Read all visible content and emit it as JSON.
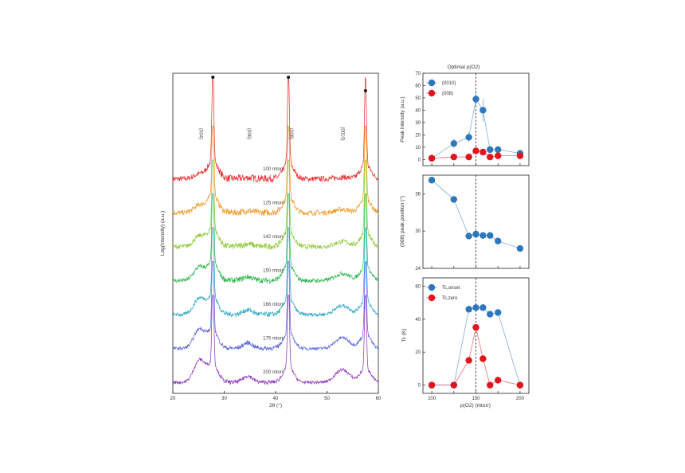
{
  "title": "Optimal p(O2)",
  "chart_data": [
    {
      "type": "line",
      "panel": "xrd-waterfall",
      "xlabel": "2θ (°)",
      "ylabel": "Log(Intensity) (a.u.)",
      "xlim": [
        20,
        60
      ],
      "x_ticks": [
        "20",
        "30",
        "40",
        "50",
        "60"
      ],
      "y_scale": "log, offset stacked",
      "peak_labels": [
        "(004)",
        "(006)",
        "(008)",
        "(0010)"
      ],
      "peak_positions": [
        25.2,
        34.6,
        43.0,
        53.0
      ],
      "reference_peaks": [
        27.8,
        42.5,
        57.5
      ],
      "series": [
        {
          "name": "100 mtorr",
          "color": "#e8262b"
        },
        {
          "name": "125 mtorr",
          "color": "#f0961e"
        },
        {
          "name": "142 mtorr",
          "color": "#8bc832"
        },
        {
          "name": "150 mtorr",
          "color": "#28b54a"
        },
        {
          "name": "166 mtorr",
          "color": "#26a8c2"
        },
        {
          "name": "175 mtorr",
          "color": "#5560d8"
        },
        {
          "name": "200 mtorr",
          "color": "#8a2db8"
        }
      ]
    },
    {
      "type": "scatter",
      "panel": "peak-intensity",
      "xlabel": "",
      "ylabel": "Peak intensity (a.u.)",
      "xlim": [
        90,
        210
      ],
      "ylim": [
        -5,
        70
      ],
      "y_ticks": [
        "0",
        "10",
        "20",
        "30",
        "40",
        "50",
        "60",
        "70"
      ],
      "legend": "top-left",
      "series": [
        {
          "name": "(0010)",
          "color": "#2d77bd",
          "x": [
            100,
            125,
            142,
            150,
            158,
            166,
            175,
            200
          ],
          "y": [
            1,
            13,
            18,
            49,
            40,
            8,
            8,
            5
          ],
          "err": [
            1,
            4,
            4,
            7,
            9,
            2,
            2,
            1
          ]
        },
        {
          "name": "(008)",
          "color": "#e3141c",
          "x": [
            100,
            125,
            142,
            150,
            158,
            166,
            175,
            200
          ],
          "y": [
            1,
            2,
            2,
            7,
            6,
            2,
            3,
            3
          ],
          "err": [
            0.5,
            0.5,
            0.5,
            1,
            1,
            0.5,
            0.5,
            0.5
          ]
        }
      ],
      "vline_x": 150
    },
    {
      "type": "scatter",
      "panel": "peak-position",
      "ylabel": "(008) peak position (°)",
      "xlim": [
        90,
        210
      ],
      "ylim": [
        24,
        39
      ],
      "y_ticks": [
        "24",
        "30",
        "36"
      ],
      "series": [
        {
          "color": "#2d77bd",
          "x": [
            100,
            125,
            142,
            150,
            158,
            166,
            175,
            200
          ],
          "y": [
            38.2,
            35.1,
            29.2,
            29.5,
            29.3,
            29.3,
            28.4,
            27.2
          ]
        }
      ],
      "vline_x": 150
    },
    {
      "type": "scatter",
      "panel": "tc",
      "xlabel": "p(O2) (mtorr)",
      "ylabel": "Tc (K)",
      "xlim": [
        90,
        210
      ],
      "ylim": [
        -5,
        65
      ],
      "x_ticks": [
        "100",
        "150",
        "200"
      ],
      "y_ticks": [
        "0",
        "20",
        "40",
        "60"
      ],
      "legend": "top-left",
      "series": [
        {
          "name": "Tc,onset",
          "color": "#2d77bd",
          "x": [
            100,
            125,
            142,
            150,
            158,
            166,
            175,
            200
          ],
          "y": [
            0,
            0,
            46,
            47,
            47,
            43,
            44,
            0
          ]
        },
        {
          "name": "Tc,zero",
          "color": "#e3141c",
          "x": [
            100,
            125,
            142,
            150,
            158,
            166,
            175,
            200
          ],
          "y": [
            0,
            0,
            15,
            35,
            16,
            0,
            3,
            0
          ]
        }
      ],
      "vline_x": 150
    }
  ]
}
